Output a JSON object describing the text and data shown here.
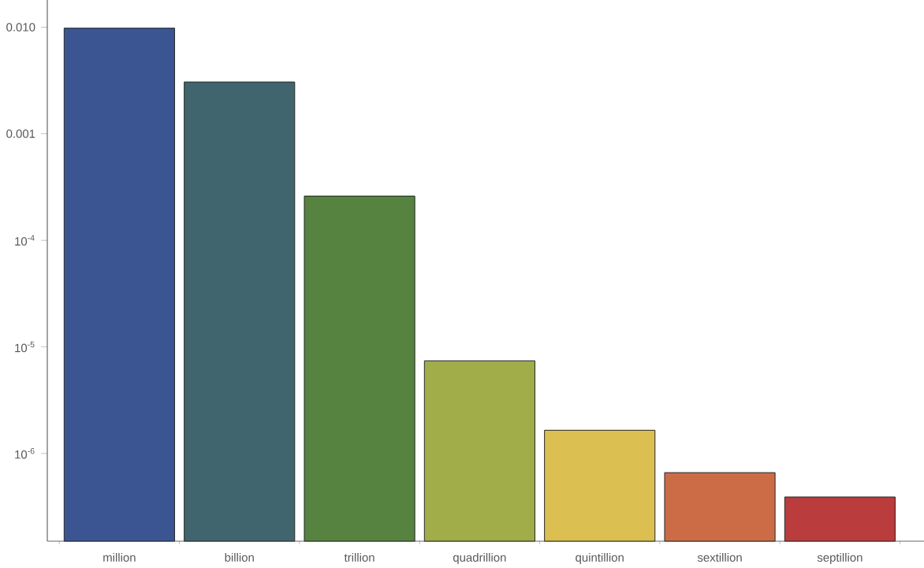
{
  "chart_data": {
    "type": "bar",
    "categories": [
      "million",
      "billion",
      "trillion",
      "quadrillion",
      "quintillion",
      "sextillion",
      "septillion"
    ],
    "values": [
      0.0098,
      0.00306,
      0.00026,
      7.4e-06,
      1.65e-06,
      6.6e-07,
      3.9e-07
    ],
    "colors": [
      "#3b5593",
      "#41656e",
      "#568340",
      "#a0ad48",
      "#dbbf50",
      "#cc6c47",
      "#bb3c3c"
    ],
    "log": "y",
    "ylim": [
      1.5e-07,
      0.018
    ],
    "yticks": [
      {
        "value": 0.01,
        "label": "0.010"
      },
      {
        "value": 0.001,
        "label": "0.001"
      },
      {
        "value": 0.0001,
        "label": "10$^{-4}$"
      },
      {
        "value": 1e-05,
        "label": "10$^{-5}$"
      },
      {
        "value": 1e-06,
        "label": "10$^{-6}$"
      }
    ]
  }
}
